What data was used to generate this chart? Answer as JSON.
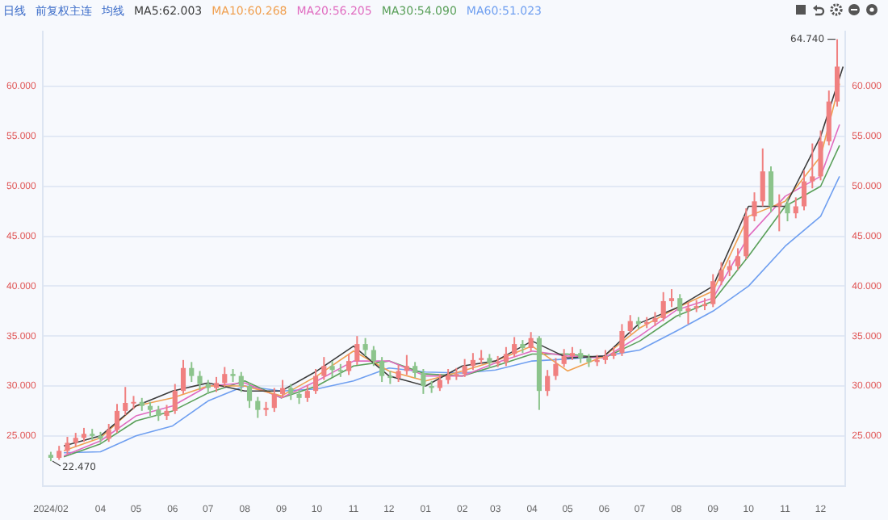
{
  "chart_data": {
    "type": "candlestick",
    "x": [
      "2024-02-19",
      "2024-02-26",
      "2024-03-04",
      "2024-03-11",
      "2024-03-18",
      "2024-03-25",
      "2024-04-01",
      "2024-04-08",
      "2024-04-15",
      "2024-04-22",
      "2024-04-29",
      "2024-05-06",
      "2024-05-13",
      "2024-05-20",
      "2024-05-27",
      "2024-06-03",
      "2024-06-10",
      "2024-06-17",
      "2024-06-24",
      "2024-07-01",
      "2024-07-08",
      "2024-07-15",
      "2024-07-22",
      "2024-07-29",
      "2024-08-05",
      "2024-08-12",
      "2024-08-19",
      "2024-08-26",
      "2024-09-02",
      "2024-09-09",
      "2024-09-16",
      "2024-09-23",
      "2024-09-30",
      "2024-10-07",
      "2024-10-14",
      "2024-10-21",
      "2024-10-28",
      "2024-11-04",
      "2024-11-11",
      "2024-11-18",
      "2024-11-25",
      "2024-12-02",
      "2024-12-09",
      "2024-12-16",
      "2024-12-23",
      "2024-12-30",
      "2025-01-06",
      "2025-01-13",
      "2025-01-20",
      "2025-01-27",
      "2025-02-03",
      "2025-02-10",
      "2025-02-17",
      "2025-02-24",
      "2025-03-03",
      "2025-03-10",
      "2025-03-17",
      "2025-03-24",
      "2025-03-31",
      "2025-04-07",
      "2025-04-14",
      "2025-04-21",
      "2025-04-28",
      "2025-05-05",
      "2025-05-12",
      "2025-05-19",
      "2025-05-26",
      "2025-06-02",
      "2025-06-09",
      "2025-06-16",
      "2025-06-23",
      "2025-06-30",
      "2025-07-07",
      "2025-07-14",
      "2025-07-21",
      "2025-07-28",
      "2025-08-04",
      "2025-08-11",
      "2025-08-18",
      "2025-08-25",
      "2025-09-01",
      "2025-09-08",
      "2025-09-15",
      "2025-09-22",
      "2025-09-29",
      "2025-10-06",
      "2025-10-13",
      "2025-10-20",
      "2025-10-27",
      "2025-11-03",
      "2025-11-10",
      "2025-11-17",
      "2025-11-24",
      "2025-12-01",
      "2025-12-08",
      "2025-12-15"
    ],
    "ohlc": [
      [
        23.1,
        23.4,
        22.47,
        22.8
      ],
      [
        22.8,
        24.0,
        22.6,
        23.5
      ],
      [
        23.5,
        24.9,
        23.2,
        24.3
      ],
      [
        24.3,
        25.3,
        23.9,
        24.8
      ],
      [
        24.8,
        25.8,
        24.4,
        25.2
      ],
      [
        25.2,
        25.7,
        24.6,
        25.0
      ],
      [
        25.0,
        25.4,
        24.3,
        24.7
      ],
      [
        24.7,
        26.2,
        24.4,
        25.6
      ],
      [
        25.6,
        28.2,
        25.3,
        27.5
      ],
      [
        27.5,
        29.9,
        27.1,
        28.3
      ],
      [
        28.3,
        29.0,
        27.7,
        28.4
      ],
      [
        28.4,
        28.8,
        27.5,
        28.0
      ],
      [
        28.0,
        28.4,
        27.0,
        27.6
      ],
      [
        27.6,
        28.0,
        26.5,
        27.0
      ],
      [
        27.0,
        28.1,
        26.6,
        27.5
      ],
      [
        27.5,
        30.2,
        27.2,
        29.5
      ],
      [
        29.5,
        32.6,
        29.2,
        31.8
      ],
      [
        31.8,
        32.4,
        30.4,
        31.0
      ],
      [
        31.0,
        31.5,
        29.6,
        30.2
      ],
      [
        30.2,
        30.6,
        29.2,
        29.8
      ],
      [
        29.8,
        30.9,
        29.4,
        30.3
      ],
      [
        30.3,
        31.9,
        29.9,
        31.2
      ],
      [
        31.2,
        31.7,
        30.4,
        31.0
      ],
      [
        31.0,
        31.4,
        29.4,
        30.0
      ],
      [
        30.0,
        30.3,
        27.8,
        28.5
      ],
      [
        28.5,
        28.9,
        26.8,
        27.6
      ],
      [
        27.6,
        28.4,
        27.0,
        27.8
      ],
      [
        27.8,
        29.8,
        27.4,
        29.2
      ],
      [
        29.2,
        30.6,
        28.8,
        29.8
      ],
      [
        29.8,
        30.2,
        28.6,
        29.2
      ],
      [
        29.2,
        29.6,
        28.2,
        28.8
      ],
      [
        28.8,
        30.1,
        28.4,
        29.5
      ],
      [
        29.5,
        31.7,
        29.2,
        31.0
      ],
      [
        31.0,
        32.9,
        30.6,
        32.0
      ],
      [
        32.0,
        32.5,
        30.9,
        31.6
      ],
      [
        31.6,
        32.2,
        30.9,
        31.5
      ],
      [
        31.5,
        33.2,
        31.1,
        32.5
      ],
      [
        32.5,
        35.0,
        32.1,
        34.2
      ],
      [
        34.2,
        34.8,
        33.0,
        33.6
      ],
      [
        33.6,
        34.0,
        32.0,
        32.5
      ],
      [
        32.5,
        32.9,
        30.4,
        31.0
      ],
      [
        31.0,
        31.5,
        30.2,
        30.8
      ],
      [
        30.8,
        32.1,
        30.4,
        31.5
      ],
      [
        31.5,
        33.1,
        31.1,
        32.0
      ],
      [
        32.0,
        32.4,
        30.8,
        31.3
      ],
      [
        31.3,
        31.7,
        29.2,
        30.0
      ],
      [
        30.0,
        30.5,
        29.3,
        29.8
      ],
      [
        29.8,
        31.2,
        29.5,
        30.6
      ],
      [
        30.6,
        31.7,
        30.2,
        31.0
      ],
      [
        31.0,
        31.8,
        30.6,
        31.2
      ],
      [
        31.2,
        32.7,
        30.9,
        32.0
      ],
      [
        32.0,
        33.3,
        31.6,
        32.6
      ],
      [
        32.6,
        33.6,
        32.2,
        32.8
      ],
      [
        32.8,
        33.2,
        31.8,
        32.3
      ],
      [
        32.3,
        33.0,
        31.9,
        32.4
      ],
      [
        32.4,
        33.9,
        32.0,
        33.2
      ],
      [
        33.2,
        34.9,
        32.9,
        34.2
      ],
      [
        34.2,
        34.6,
        33.3,
        33.8
      ],
      [
        33.8,
        35.4,
        33.5,
        34.8
      ],
      [
        34.8,
        35.0,
        27.6,
        29.5
      ],
      [
        29.5,
        31.6,
        29.0,
        31.0
      ],
      [
        31.0,
        32.8,
        30.6,
        32.2
      ],
      [
        32.2,
        33.7,
        31.9,
        33.0
      ],
      [
        33.0,
        33.9,
        32.6,
        33.3
      ],
      [
        33.3,
        33.7,
        32.3,
        32.8
      ],
      [
        32.8,
        33.2,
        31.9,
        32.4
      ],
      [
        32.4,
        33.1,
        32.0,
        32.6
      ],
      [
        32.6,
        33.6,
        32.2,
        33.0
      ],
      [
        33.0,
        33.9,
        32.7,
        33.3
      ],
      [
        33.3,
        36.2,
        33.0,
        35.5
      ],
      [
        35.5,
        37.1,
        35.2,
        36.5
      ],
      [
        36.5,
        36.9,
        35.7,
        36.2
      ],
      [
        36.2,
        36.9,
        35.8,
        36.4
      ],
      [
        36.4,
        37.4,
        36.0,
        36.8
      ],
      [
        36.8,
        39.4,
        36.5,
        38.5
      ],
      [
        38.5,
        39.7,
        37.9,
        38.8
      ],
      [
        38.8,
        39.2,
        36.9,
        37.5
      ],
      [
        37.5,
        38.4,
        36.2,
        37.8
      ],
      [
        37.8,
        38.6,
        37.4,
        38.0
      ],
      [
        38.0,
        38.8,
        37.6,
        38.2
      ],
      [
        38.2,
        41.2,
        37.9,
        40.5
      ],
      [
        40.5,
        42.4,
        40.1,
        41.6
      ],
      [
        41.6,
        42.6,
        41.0,
        42.0
      ],
      [
        42.0,
        43.8,
        41.6,
        43.0
      ],
      [
        43.0,
        47.8,
        42.7,
        47.0
      ],
      [
        47.0,
        49.4,
        46.5,
        48.5
      ],
      [
        48.5,
        53.8,
        48.0,
        51.5
      ],
      [
        51.5,
        52.0,
        47.4,
        48.0
      ],
      [
        48.0,
        49.2,
        45.5,
        48.3
      ],
      [
        48.3,
        48.8,
        46.5,
        47.3
      ],
      [
        47.3,
        48.9,
        46.8,
        48.0
      ],
      [
        48.0,
        51.6,
        47.6,
        50.5
      ],
      [
        50.5,
        54.3,
        49.8,
        51.0
      ],
      [
        51.0,
        55.6,
        50.6,
        54.5
      ],
      [
        54.5,
        59.6,
        54.1,
        58.5
      ],
      [
        58.5,
        64.74,
        58.0,
        62.0
      ]
    ],
    "series": [
      {
        "name": "MA5:62.003",
        "type": "line",
        "color": "#3c3c3c",
        "x": [
          "2024-03-01",
          "2024-04-01",
          "2024-05-01",
          "2024-06-01",
          "2024-07-01",
          "2024-08-01",
          "2024-09-01",
          "2024-10-01",
          "2024-11-01",
          "2024-12-01",
          "2025-01-01",
          "2025-02-01",
          "2025-03-01",
          "2025-04-01",
          "2025-05-01",
          "2025-06-01",
          "2025-07-01",
          "2025-08-01",
          "2025-09-01",
          "2025-10-01",
          "2025-11-01",
          "2025-12-01",
          "2025-12-20"
        ],
        "values": [
          24.0,
          25.0,
          28.0,
          29.5,
          30.3,
          29.5,
          29.5,
          31.5,
          34.0,
          31.0,
          30.0,
          32.0,
          32.5,
          34.5,
          32.8,
          33.0,
          36.3,
          37.8,
          40.0,
          48.0,
          48.0,
          55.0,
          62.0
        ]
      },
      {
        "name": "MA10:60.268",
        "type": "line",
        "color": "#f0a050",
        "x": [
          "2024-03-01",
          "2024-04-01",
          "2024-05-01",
          "2024-06-01",
          "2024-07-01",
          "2024-08-01",
          "2024-09-01",
          "2024-10-01",
          "2024-11-01",
          "2024-12-01",
          "2025-01-01",
          "2025-02-01",
          "2025-03-01",
          "2025-04-01",
          "2025-05-01",
          "2025-06-01",
          "2025-07-01",
          "2025-08-01",
          "2025-09-01",
          "2025-10-01",
          "2025-11-01",
          "2025-12-01",
          "2025-12-17"
        ],
        "values": [
          23.5,
          24.8,
          28.0,
          28.8,
          30.0,
          30.0,
          29.0,
          31.0,
          33.5,
          31.5,
          30.5,
          31.5,
          32.5,
          34.0,
          31.5,
          33.0,
          35.8,
          37.8,
          39.5,
          47.0,
          48.5,
          53.0,
          60.3
        ]
      },
      {
        "name": "MA20:56.205",
        "type": "line",
        "color": "#e06cc0",
        "x": [
          "2024-03-01",
          "2024-04-01",
          "2024-05-01",
          "2024-06-01",
          "2024-07-01",
          "2024-08-01",
          "2024-09-01",
          "2024-10-01",
          "2024-11-01",
          "2024-12-01",
          "2025-01-01",
          "2025-02-01",
          "2025-03-01",
          "2025-04-01",
          "2025-05-01",
          "2025-06-01",
          "2025-07-01",
          "2025-08-01",
          "2025-09-01",
          "2025-10-01",
          "2025-11-01",
          "2025-12-01",
          "2025-12-17"
        ],
        "values": [
          23.0,
          24.5,
          27.0,
          28.0,
          30.0,
          30.3,
          28.8,
          30.5,
          32.5,
          32.5,
          31.0,
          31.0,
          32.3,
          33.5,
          33.0,
          32.8,
          35.0,
          37.6,
          38.8,
          45.0,
          49.0,
          51.0,
          56.2
        ]
      },
      {
        "name": "MA30:54.090",
        "type": "line",
        "color": "#5aa05a",
        "x": [
          "2024-03-01",
          "2024-04-01",
          "2024-05-01",
          "2024-06-01",
          "2024-07-01",
          "2024-08-01",
          "2024-09-01",
          "2024-10-01",
          "2024-11-01",
          "2024-12-01",
          "2025-01-01",
          "2025-02-01",
          "2025-03-01",
          "2025-04-01",
          "2025-05-01",
          "2025-06-01",
          "2025-07-01",
          "2025-08-01",
          "2025-09-01",
          "2025-10-01",
          "2025-11-01",
          "2025-12-01",
          "2025-12-17"
        ],
        "values": [
          22.9,
          24.2,
          26.5,
          27.5,
          29.3,
          30.5,
          28.8,
          30.0,
          32.0,
          32.5,
          31.2,
          31.0,
          32.0,
          33.2,
          33.2,
          32.8,
          34.5,
          37.0,
          38.5,
          43.0,
          48.0,
          50.0,
          54.1
        ]
      },
      {
        "name": "MA60:51.023",
        "type": "line",
        "color": "#6f9ff0",
        "x": [
          "2024-03-01",
          "2024-04-01",
          "2024-05-01",
          "2024-06-01",
          "2024-07-01",
          "2024-08-01",
          "2024-09-01",
          "2024-10-01",
          "2024-11-01",
          "2024-12-01",
          "2025-01-01",
          "2025-02-01",
          "2025-03-01",
          "2025-04-01",
          "2025-05-01",
          "2025-06-01",
          "2025-07-01",
          "2025-08-01",
          "2025-09-01",
          "2025-10-01",
          "2025-11-01",
          "2025-12-01",
          "2025-12-17"
        ],
        "values": [
          23.3,
          23.4,
          25.0,
          26.0,
          28.5,
          30.0,
          29.5,
          29.7,
          30.5,
          31.8,
          31.4,
          31.3,
          31.6,
          32.5,
          32.7,
          33.0,
          33.6,
          35.5,
          37.5,
          40.0,
          44.0,
          47.0,
          51.0
        ]
      }
    ],
    "xlim": [
      "2024-02-12",
      "2025-12-22"
    ],
    "xticks": [
      {
        "value": "2024-02-19",
        "label": "2024/02"
      },
      {
        "value": "2024-04-01",
        "label": "04"
      },
      {
        "value": "2024-05-01",
        "label": "05"
      },
      {
        "value": "2024-06-01",
        "label": "06"
      },
      {
        "value": "2024-07-01",
        "label": "07"
      },
      {
        "value": "2024-08-01",
        "label": "08"
      },
      {
        "value": "2024-09-01",
        "label": "09"
      },
      {
        "value": "2024-10-01",
        "label": "10"
      },
      {
        "value": "2024-11-01",
        "label": "11"
      },
      {
        "value": "2024-12-01",
        "label": "12"
      },
      {
        "value": "2025-01-01",
        "label": "01"
      },
      {
        "value": "2025-02-01",
        "label": "02"
      },
      {
        "value": "2025-03-01",
        "label": "03"
      },
      {
        "value": "2025-04-01",
        "label": "04"
      },
      {
        "value": "2025-05-01",
        "label": "05"
      },
      {
        "value": "2025-06-01",
        "label": "06"
      },
      {
        "value": "2025-07-01",
        "label": "07"
      },
      {
        "value": "2025-08-01",
        "label": "08"
      },
      {
        "value": "2025-09-01",
        "label": "09"
      },
      {
        "value": "2025-10-01",
        "label": "10"
      },
      {
        "value": "2025-11-01",
        "label": "11"
      },
      {
        "value": "2025-12-01",
        "label": "12"
      }
    ],
    "ylim": [
      20,
      65.5
    ],
    "yticks": [
      {
        "value": 25,
        "label": "25.000"
      },
      {
        "value": 30,
        "label": "30.000"
      },
      {
        "value": 35,
        "label": "35.000"
      },
      {
        "value": 40,
        "label": "40.000"
      },
      {
        "value": 45,
        "label": "45.000"
      },
      {
        "value": 50,
        "label": "50.000"
      },
      {
        "value": 55,
        "label": "55.000"
      },
      {
        "value": 60,
        "label": "60.000"
      }
    ],
    "y2lim": [
      20,
      65.5
    ],
    "y2ticks": [
      {
        "value": 25,
        "label": "25.000"
      },
      {
        "value": 30,
        "label": "30.000"
      },
      {
        "value": 35,
        "label": "35.000"
      },
      {
        "value": 40,
        "label": "40.000"
      },
      {
        "value": 45,
        "label": "45.000"
      },
      {
        "value": 50,
        "label": "50.000"
      },
      {
        "value": 55,
        "label": "55.000"
      },
      {
        "value": 60,
        "label": "60.000"
      }
    ],
    "grid": "y",
    "legend": "top left",
    "annotations": [
      "日线",
      "前复权主连",
      "均线",
      {
        "text": "64.740",
        "x": "2025-12-15",
        "y": 64.74
      },
      {
        "text": "22.470",
        "x": "2024-02-19",
        "y": 22.47
      }
    ]
  }
}
